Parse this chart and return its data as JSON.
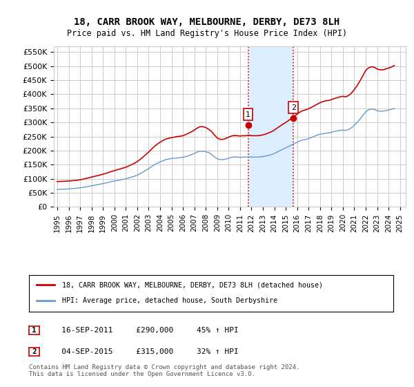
{
  "title": "18, CARR BROOK WAY, MELBOURNE, DERBY, DE73 8LH",
  "subtitle": "Price paid vs. HM Land Registry's House Price Index (HPI)",
  "ylabel_ticks": [
    "£0",
    "£50K",
    "£100K",
    "£150K",
    "£200K",
    "£250K",
    "£300K",
    "£350K",
    "£400K",
    "£450K",
    "£500K",
    "£550K"
  ],
  "ylabel_values": [
    0,
    50000,
    100000,
    150000,
    200000,
    250000,
    300000,
    350000,
    400000,
    450000,
    500000,
    550000
  ],
  "ylim": [
    0,
    570000
  ],
  "xlim_start": 1995.0,
  "xlim_end": 2025.5,
  "grid_color": "#cccccc",
  "background_color": "#ffffff",
  "plot_bg_color": "#ffffff",
  "sale1_date": 2011.71,
  "sale1_price": 290000,
  "sale1_label": "1",
  "sale2_date": 2015.67,
  "sale2_price": 315000,
  "sale2_label": "2",
  "shade1_start": 2011.71,
  "shade1_end": 2015.67,
  "shade_color": "#ddeeff",
  "vline_color": "#cc0000",
  "vline_style": ":",
  "red_line_color": "#cc0000",
  "blue_line_color": "#6699cc",
  "marker_color": "#cc0000",
  "legend_line1": "18, CARR BROOK WAY, MELBOURNE, DERBY, DE73 8LH (detached house)",
  "legend_line2": "HPI: Average price, detached house, South Derbyshire",
  "table_row1": [
    "1",
    "16-SEP-2011",
    "£290,000",
    "45% ↑ HPI"
  ],
  "table_row2": [
    "2",
    "04-SEP-2015",
    "£315,000",
    "32% ↑ HPI"
  ],
  "footer": "Contains HM Land Registry data © Crown copyright and database right 2024.\nThis data is licensed under the Open Government Licence v3.0.",
  "hpi_data": {
    "dates": [
      1995.0,
      1995.25,
      1995.5,
      1995.75,
      1996.0,
      1996.25,
      1996.5,
      1996.75,
      1997.0,
      1997.25,
      1997.5,
      1997.75,
      1998.0,
      1998.25,
      1998.5,
      1998.75,
      1999.0,
      1999.25,
      1999.5,
      1999.75,
      2000.0,
      2000.25,
      2000.5,
      2000.75,
      2001.0,
      2001.25,
      2001.5,
      2001.75,
      2002.0,
      2002.25,
      2002.5,
      2002.75,
      2003.0,
      2003.25,
      2003.5,
      2003.75,
      2004.0,
      2004.25,
      2004.5,
      2004.75,
      2005.0,
      2005.25,
      2005.5,
      2005.75,
      2006.0,
      2006.25,
      2006.5,
      2006.75,
      2007.0,
      2007.25,
      2007.5,
      2007.75,
      2008.0,
      2008.25,
      2008.5,
      2008.75,
      2009.0,
      2009.25,
      2009.5,
      2009.75,
      2010.0,
      2010.25,
      2010.5,
      2010.75,
      2011.0,
      2011.25,
      2011.5,
      2011.75,
      2012.0,
      2012.25,
      2012.5,
      2012.75,
      2013.0,
      2013.25,
      2013.5,
      2013.75,
      2014.0,
      2014.25,
      2014.5,
      2014.75,
      2015.0,
      2015.25,
      2015.5,
      2015.75,
      2016.0,
      2016.25,
      2016.5,
      2016.75,
      2017.0,
      2017.25,
      2017.5,
      2017.75,
      2018.0,
      2018.25,
      2018.5,
      2018.75,
      2019.0,
      2019.25,
      2019.5,
      2019.75,
      2020.0,
      2020.25,
      2020.5,
      2020.75,
      2021.0,
      2021.25,
      2021.5,
      2021.75,
      2022.0,
      2022.25,
      2022.5,
      2022.75,
      2023.0,
      2023.25,
      2023.5,
      2023.75,
      2024.0,
      2024.25,
      2024.5
    ],
    "values": [
      62000,
      62500,
      63000,
      63500,
      64000,
      65000,
      66000,
      67000,
      68000,
      69500,
      71000,
      73000,
      75000,
      77000,
      79000,
      81000,
      83000,
      85000,
      87500,
      90000,
      92000,
      94000,
      96000,
      98000,
      100000,
      103000,
      106000,
      109000,
      113000,
      118000,
      124000,
      130000,
      136000,
      143000,
      150000,
      155000,
      160000,
      164000,
      168000,
      170000,
      172000,
      173000,
      174000,
      175000,
      176000,
      179000,
      182000,
      186000,
      190000,
      195000,
      198000,
      198000,
      196000,
      193000,
      187000,
      178000,
      171000,
      168000,
      168000,
      170000,
      173000,
      176000,
      178000,
      177000,
      176000,
      177000,
      177000,
      178000,
      177000,
      177000,
      177000,
      178000,
      179000,
      181000,
      183000,
      186000,
      190000,
      195000,
      200000,
      205000,
      210000,
      215000,
      220000,
      225000,
      230000,
      235000,
      238000,
      240000,
      243000,
      247000,
      251000,
      255000,
      258000,
      260000,
      262000,
      263000,
      265000,
      268000,
      270000,
      272000,
      273000,
      272000,
      275000,
      281000,
      290000,
      300000,
      312000,
      325000,
      338000,
      345000,
      348000,
      346000,
      342000,
      340000,
      340000,
      342000,
      344000,
      347000,
      350000
    ]
  },
  "price_data": {
    "dates": [
      1995.0,
      1995.25,
      1995.5,
      1995.75,
      1996.0,
      1996.25,
      1996.5,
      1996.75,
      1997.0,
      1997.25,
      1997.5,
      1997.75,
      1998.0,
      1998.25,
      1998.5,
      1998.75,
      1999.0,
      1999.25,
      1999.5,
      1999.75,
      2000.0,
      2000.25,
      2000.5,
      2000.75,
      2001.0,
      2001.25,
      2001.5,
      2001.75,
      2002.0,
      2002.25,
      2002.5,
      2002.75,
      2003.0,
      2003.25,
      2003.5,
      2003.75,
      2004.0,
      2004.25,
      2004.5,
      2004.75,
      2005.0,
      2005.25,
      2005.5,
      2005.75,
      2006.0,
      2006.25,
      2006.5,
      2006.75,
      2007.0,
      2007.25,
      2007.5,
      2007.75,
      2008.0,
      2008.25,
      2008.5,
      2008.75,
      2009.0,
      2009.25,
      2009.5,
      2009.75,
      2010.0,
      2010.25,
      2010.5,
      2010.75,
      2011.0,
      2011.25,
      2011.5,
      2011.75,
      2012.0,
      2012.25,
      2012.5,
      2012.75,
      2013.0,
      2013.25,
      2013.5,
      2013.75,
      2014.0,
      2014.25,
      2014.5,
      2014.75,
      2015.0,
      2015.25,
      2015.5,
      2015.75,
      2016.0,
      2016.25,
      2016.5,
      2016.75,
      2017.0,
      2017.25,
      2017.5,
      2017.75,
      2018.0,
      2018.25,
      2018.5,
      2018.75,
      2019.0,
      2019.25,
      2019.5,
      2019.75,
      2020.0,
      2020.25,
      2020.5,
      2020.75,
      2021.0,
      2021.25,
      2021.5,
      2021.75,
      2022.0,
      2022.25,
      2022.5,
      2022.75,
      2023.0,
      2023.25,
      2023.5,
      2023.75,
      2024.0,
      2024.25,
      2024.5
    ],
    "values": [
      90000,
      90500,
      91000,
      91500,
      92000,
      93000,
      94000,
      95000,
      96500,
      98500,
      101000,
      103500,
      106000,
      108500,
      111000,
      113500,
      116000,
      119000,
      122500,
      126000,
      129000,
      132000,
      135000,
      138000,
      141000,
      145500,
      150000,
      155000,
      161000,
      168500,
      177000,
      186000,
      195000,
      205000,
      215000,
      223000,
      230000,
      236000,
      241000,
      244000,
      246000,
      248000,
      250000,
      251000,
      253000,
      257000,
      262000,
      267000,
      273000,
      280000,
      285000,
      285000,
      282000,
      276000,
      268000,
      256000,
      245000,
      240000,
      240000,
      243000,
      248000,
      252000,
      254000,
      253000,
      252000,
      253000,
      253000,
      255000,
      253000,
      253000,
      253000,
      254000,
      256000,
      259000,
      263000,
      267000,
      273000,
      280000,
      287000,
      294000,
      300000,
      307000,
      315000,
      322000,
      330000,
      337000,
      342000,
      345000,
      349000,
      354000,
      359000,
      365000,
      370000,
      374000,
      377000,
      378000,
      381000,
      385000,
      388000,
      391000,
      393000,
      391000,
      396000,
      404000,
      417000,
      431000,
      448000,
      466000,
      485000,
      494000,
      498000,
      496000,
      490000,
      487000,
      487000,
      490000,
      493000,
      497000,
      502000
    ]
  }
}
